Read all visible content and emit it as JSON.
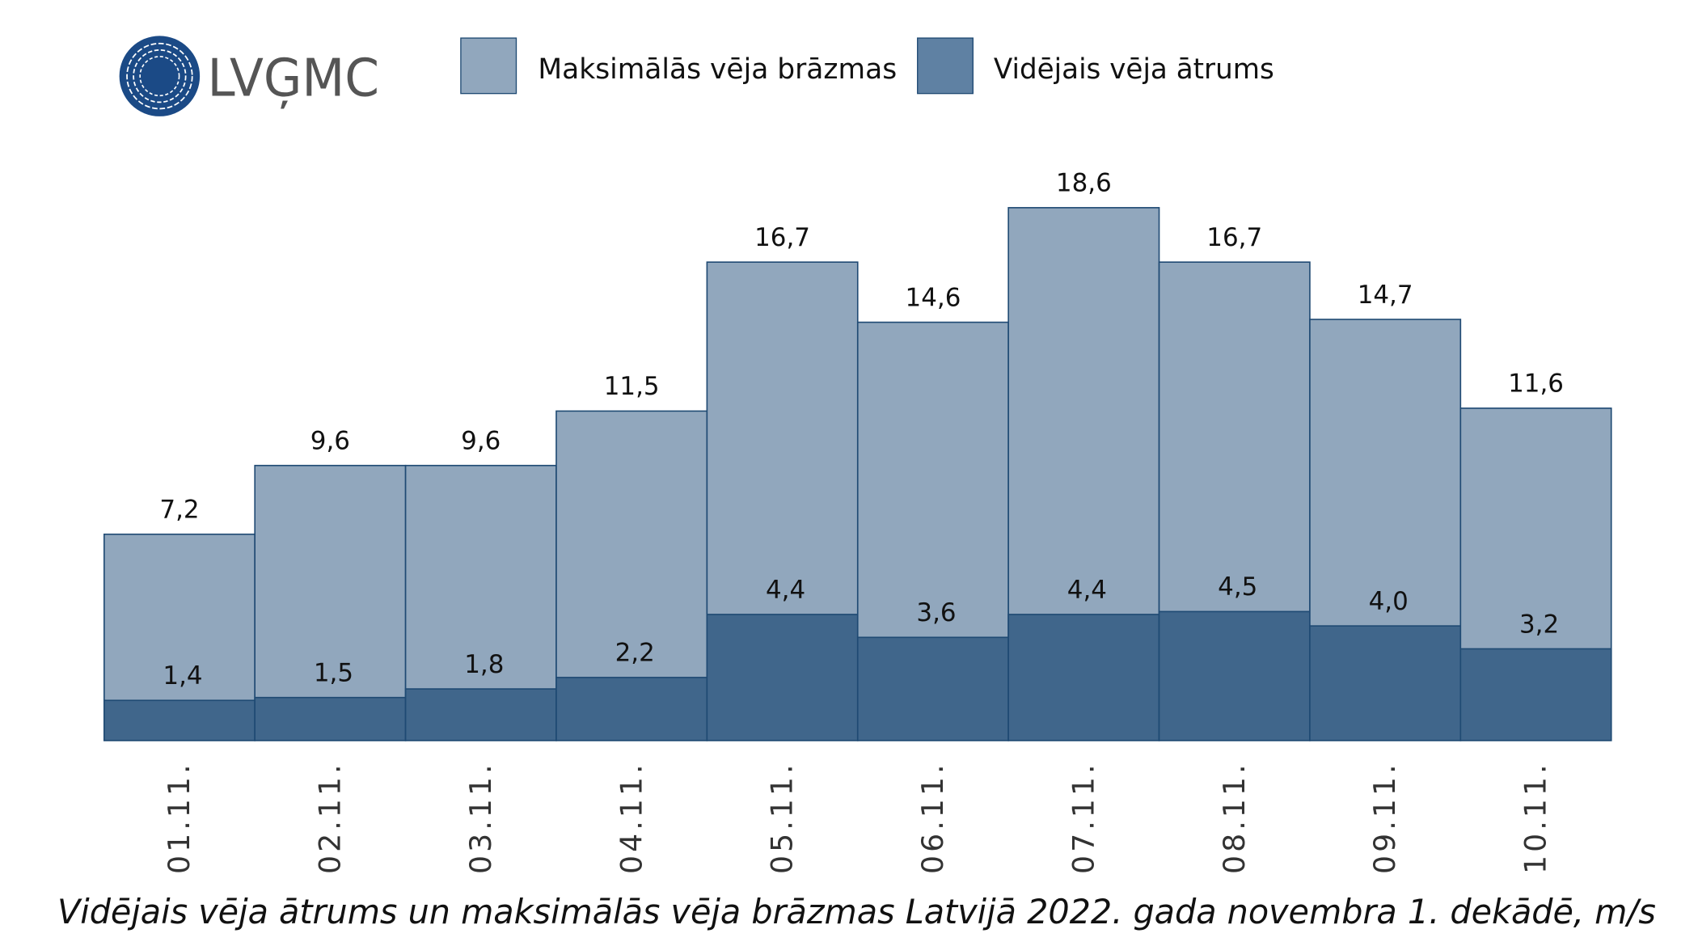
{
  "logo": {
    "text": "LVĢMC",
    "color": "#1b4a86"
  },
  "legend": [
    {
      "label": "Maksimālās vēja brāzmas",
      "color": "#91a7bd"
    },
    {
      "label": "Vidējais vēja ātrums",
      "color": "#5f81a3"
    }
  ],
  "chart_data": {
    "type": "bar",
    "title": "Vidējais vēja ātrums un maksimālās vēja brāzmas Latvijā 2022. gada novembra 1. dekādē, m/s",
    "xlabel": "",
    "ylabel": "",
    "ylim": [
      0,
      18.6
    ],
    "grid": false,
    "legend_position": "top",
    "categories": [
      "01.11.",
      "02.11.",
      "03.11.",
      "04.11.",
      "05.11.",
      "06.11.",
      "07.11.",
      "08.11.",
      "09.11.",
      "10.11."
    ],
    "series": [
      {
        "name": "Maksimālās vēja brāzmas",
        "color": "#91a7bd",
        "values": [
          7.2,
          9.6,
          9.6,
          11.5,
          16.7,
          14.6,
          18.6,
          16.7,
          14.7,
          11.6
        ],
        "labels": [
          "7,2",
          "9,6",
          "9,6",
          "11,5",
          "16,7",
          "14,6",
          "18,6",
          "16,7",
          "14,7",
          "11,6"
        ]
      },
      {
        "name": "Vidējais vēja ātrums",
        "color": "#40668b",
        "values": [
          1.4,
          1.5,
          1.8,
          2.2,
          4.4,
          3.6,
          4.4,
          4.5,
          4.0,
          3.2
        ],
        "labels": [
          "1,4",
          "1,5",
          "1,8",
          "2,2",
          "4,4",
          "3,6",
          "4,4",
          "4,5",
          "4,0",
          "3,2"
        ]
      }
    ]
  }
}
